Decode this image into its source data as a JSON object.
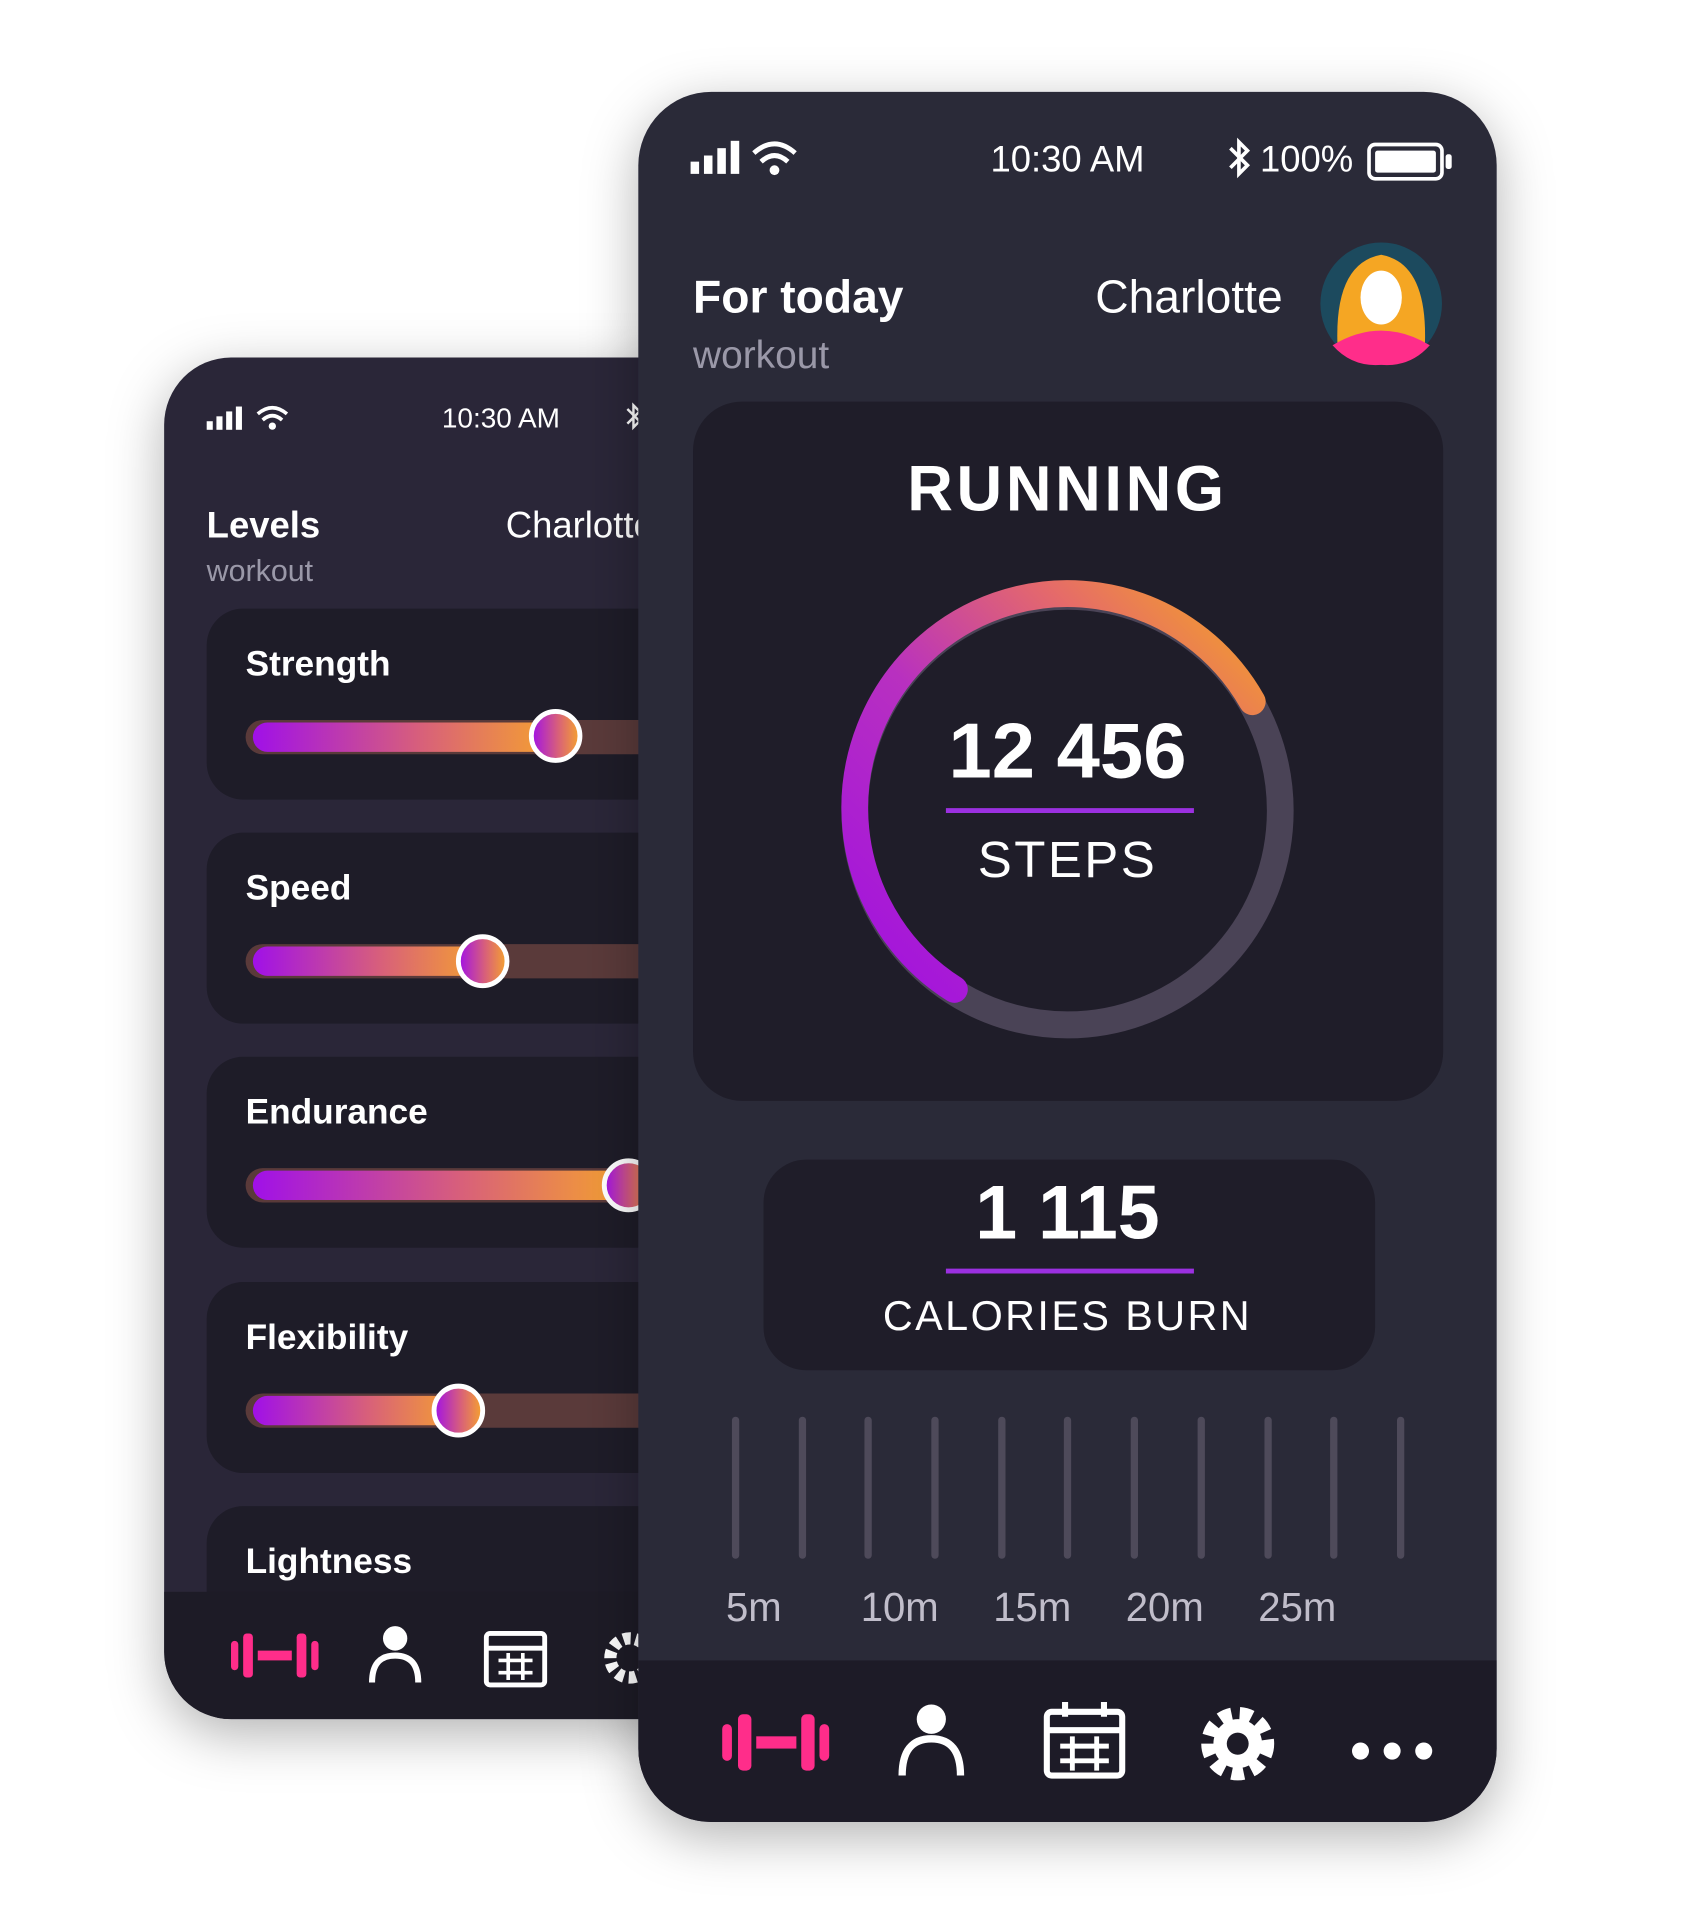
{
  "back_screen": {
    "status_time": "10:30 AM",
    "title": "Levels",
    "subtitle": "workout",
    "user_name": "Charlotte",
    "levels": [
      "Strength",
      "Speed",
      "Endurance",
      "Flexibility",
      "Lightness"
    ]
  },
  "front_screen": {
    "status_time": "10:30 AM",
    "battery": "100%",
    "title": "For today",
    "subtitle": "workout",
    "user_name": "Charlotte",
    "activity": "RUNNING",
    "steps_value": "12 456",
    "steps_label": "STEPS",
    "calories_value": "1 115",
    "calories_label": "CALORIES BURN",
    "time_labels": [
      "5m",
      "10m",
      "15m",
      "20m",
      "25m"
    ]
  }
}
